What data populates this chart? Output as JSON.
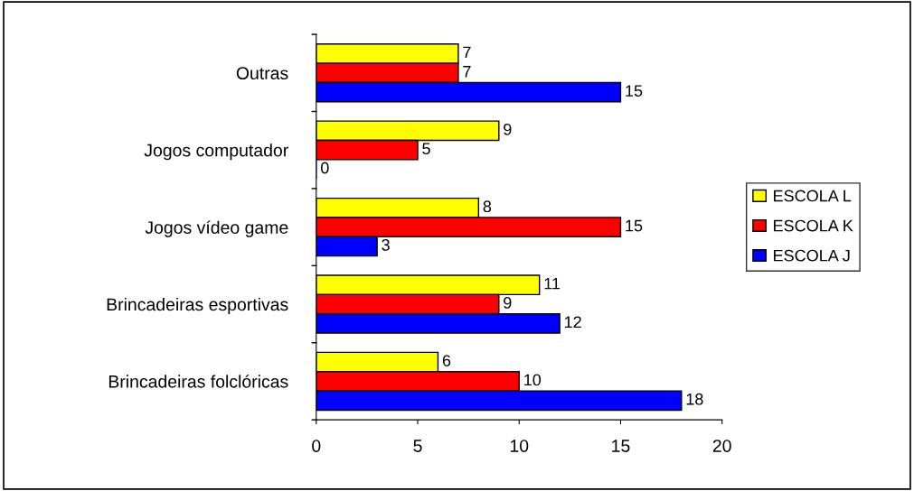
{
  "chart_data": {
    "type": "bar",
    "orientation": "horizontal",
    "categories": [
      "Outras",
      "Jogos computador",
      "Jogos vídeo game",
      "Brincadeiras esportivas",
      "Brincadeiras folclóricas"
    ],
    "series": [
      {
        "name": "ESCOLA L",
        "color": "#ffff00",
        "values": [
          7,
          9,
          8,
          11,
          6
        ]
      },
      {
        "name": "ESCOLA K",
        "color": "#ff0000",
        "values": [
          7,
          5,
          15,
          9,
          10
        ]
      },
      {
        "name": "ESCOLA J",
        "color": "#0000ff",
        "values": [
          15,
          0,
          3,
          12,
          18
        ]
      }
    ],
    "xlim": [
      0,
      20
    ],
    "xticks": [
      0,
      5,
      10,
      15,
      20
    ],
    "grid": false,
    "legend": "right",
    "data_labels": true
  }
}
